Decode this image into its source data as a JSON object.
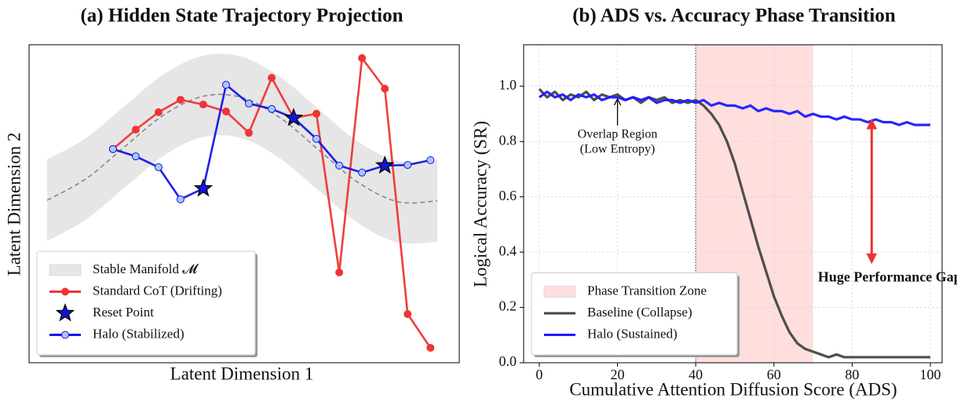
{
  "chart_data": [
    {
      "type": "line",
      "title": "(a) Hidden State Trajectory Projection",
      "xlabel": "Latent Dimension 1",
      "ylabel": "Latent Dimension 2",
      "xlim": [
        0,
        10
      ],
      "ylim": [
        0,
        10
      ],
      "legend": "lower left",
      "band": {
        "name": "Stable Manifold 𝓜",
        "color": "#e6e6e6",
        "line_color": "#888888",
        "x": [
          0.42,
          1.33,
          2.23,
          3.14,
          4.05,
          4.95,
          5.86,
          6.77,
          7.66,
          8.58,
          9.49
        ],
        "values": [
          5.11,
          5.79,
          6.8,
          7.8,
          8.38,
          8.34,
          7.68,
          6.65,
          5.66,
          5.06,
          5.09
        ],
        "halfwidth": 1.28
      },
      "series": [
        {
          "name": "Standard CoT (Drifting)",
          "color": "#f03434",
          "marker": "circle",
          "marker_color": "#f03434",
          "x": [
            1.95,
            2.48,
            3.01,
            3.52,
            4.05,
            4.58,
            5.11,
            5.64,
            6.15,
            6.68,
            7.21,
            7.74,
            8.27,
            8.8,
            9.33
          ],
          "values": [
            6.72,
            7.33,
            7.88,
            8.27,
            8.12,
            7.9,
            7.23,
            8.96,
            7.7,
            7.83,
            2.84,
            9.58,
            8.62,
            1.53,
            0.47
          ]
        },
        {
          "name": "Reset Point",
          "color": "#1414d8",
          "marker": "star",
          "marker_color": "#1414d8",
          "x": [
            4.05,
            6.15,
            8.27
          ],
          "values": [
            5.48,
            7.7,
            6.2
          ]
        },
        {
          "name": "Halo (Stabilized)",
          "color": "#1414e8",
          "marker": "circle",
          "marker_color": "#a9c9f2",
          "x": [
            1.95,
            2.48,
            3.01,
            3.52,
            4.05,
            4.58,
            5.11,
            5.64,
            6.15,
            6.68,
            7.21,
            7.74,
            8.27,
            8.8,
            9.33
          ],
          "values": [
            6.72,
            6.49,
            6.15,
            5.14,
            5.48,
            8.74,
            8.15,
            7.98,
            7.7,
            7.04,
            6.2,
            5.98,
            6.2,
            6.22,
            6.37
          ]
        }
      ]
    },
    {
      "type": "line",
      "title": "(b) ADS vs. Accuracy Phase Transition",
      "xlabel": "Cumulative Attention Diffusion Score (ADS)",
      "ylabel": "Logical Accuracy (SR)",
      "xlim": [
        -4,
        103
      ],
      "ylim": [
        0,
        1.15
      ],
      "xticks": [
        0,
        20,
        40,
        60,
        80,
        100
      ],
      "yticks": [
        {
          "value": 0,
          "label": "0.0"
        },
        {
          "value": 0.2,
          "label": "0.2"
        },
        {
          "value": 0.4,
          "label": "0.4"
        },
        {
          "value": 0.6,
          "label": "0.6"
        },
        {
          "value": 0.8,
          "label": "0.8"
        },
        {
          "value": 1,
          "label": "1.0"
        }
      ],
      "grid": true,
      "legend": "lower left",
      "span": {
        "name": "Phase Transition Zone",
        "color": "#ffdede",
        "from": 40,
        "to": 70
      },
      "vline": 40,
      "x": [
        0,
        2,
        4,
        6,
        8,
        10,
        12,
        14,
        16,
        18,
        20,
        22,
        24,
        26,
        28,
        30,
        32,
        34,
        36,
        38,
        40,
        42,
        44,
        46,
        48,
        50,
        52,
        54,
        56,
        58,
        60,
        62,
        64,
        66,
        68,
        70,
        72,
        74,
        76,
        78,
        80,
        82,
        84,
        86,
        88,
        90,
        92,
        94,
        96,
        98,
        100
      ],
      "series": [
        {
          "name": "Baseline (Collapse)",
          "color": "#444444",
          "values": [
            0.99,
            0.96,
            0.98,
            0.95,
            0.97,
            0.96,
            0.98,
            0.95,
            0.97,
            0.96,
            0.97,
            0.95,
            0.96,
            0.94,
            0.96,
            0.95,
            0.96,
            0.94,
            0.95,
            0.94,
            0.95,
            0.93,
            0.9,
            0.86,
            0.8,
            0.72,
            0.62,
            0.52,
            0.42,
            0.33,
            0.24,
            0.17,
            0.11,
            0.07,
            0.05,
            0.04,
            0.03,
            0.02,
            0.03,
            0.02,
            0.02,
            0.02,
            0.02,
            0.02,
            0.02,
            0.02,
            0.02,
            0.02,
            0.02,
            0.02,
            0.02
          ]
        },
        {
          "name": "Halo (Sustained)",
          "color": "#1c1cff",
          "values": [
            0.96,
            0.98,
            0.96,
            0.97,
            0.95,
            0.97,
            0.96,
            0.97,
            0.95,
            0.96,
            0.96,
            0.95,
            0.96,
            0.95,
            0.96,
            0.94,
            0.95,
            0.95,
            0.94,
            0.95,
            0.94,
            0.95,
            0.93,
            0.94,
            0.93,
            0.93,
            0.92,
            0.93,
            0.91,
            0.92,
            0.91,
            0.91,
            0.9,
            0.91,
            0.89,
            0.9,
            0.89,
            0.89,
            0.88,
            0.89,
            0.88,
            0.88,
            0.87,
            0.88,
            0.87,
            0.87,
            0.86,
            0.87,
            0.86,
            0.86,
            0.86
          ]
        }
      ],
      "annotations": [
        {
          "lines": [
            "Overlap Region",
            "(Low Entropy)"
          ],
          "x": 20,
          "y": 0.96,
          "color": "#444444"
        },
        {
          "text": "Huge Performance Gap",
          "x": 85,
          "from": 0.88,
          "to": 0.36,
          "color": "#ee3333",
          "text_color": "#cc0000"
        }
      ]
    }
  ]
}
